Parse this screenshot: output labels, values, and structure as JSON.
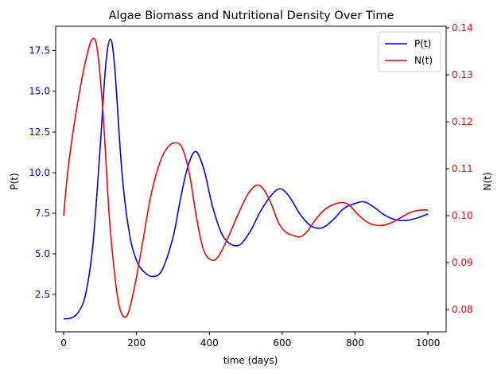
{
  "chart_data": {
    "type": "line",
    "title": "Algae Biomass and Nutritional Density Over Time",
    "xlabel": "time (days)",
    "ylabel_left": "P(t)",
    "ylabel_right": "N(t)",
    "xlim": [
      -22,
      1050
    ],
    "ylim_left": [
      0.2,
      19.0
    ],
    "ylim_right": [
      0.0753,
      0.1403
    ],
    "x_ticks": [
      0,
      200,
      400,
      600,
      800,
      1000
    ],
    "x_tick_labels": [
      "0",
      "200",
      "400",
      "600",
      "800",
      "1000"
    ],
    "y_left_ticks": [
      2.5,
      5.0,
      7.5,
      10.0,
      12.5,
      15.0,
      17.5
    ],
    "y_left_tick_labels": [
      "2.5",
      "5.0",
      "7.5",
      "10.0",
      "12.5",
      "15.0",
      "17.5"
    ],
    "y_right_ticks": [
      0.08,
      0.09,
      0.1,
      0.11,
      0.12,
      0.13,
      0.14
    ],
    "y_right_tick_labels": [
      "0.08",
      "0.09",
      "0.10",
      "0.11",
      "0.12",
      "0.13",
      "0.14"
    ],
    "grid": false,
    "legend_position": "top-right",
    "left_axis_color": "#0000ff",
    "right_axis_color": "#ff0000",
    "series": [
      {
        "name": "P(t)",
        "axis": "left",
        "color": "#0000ff",
        "points": [
          [
            0,
            1.0
          ],
          [
            20,
            1.05
          ],
          [
            40,
            1.4
          ],
          [
            60,
            2.5
          ],
          [
            80,
            5.5
          ],
          [
            100,
            11.5
          ],
          [
            115,
            16.5
          ],
          [
            128,
            18.2
          ],
          [
            140,
            16.5
          ],
          [
            160,
            10.0
          ],
          [
            180,
            6.3
          ],
          [
            200,
            4.6
          ],
          [
            220,
            3.9
          ],
          [
            245,
            3.6
          ],
          [
            270,
            4.0
          ],
          [
            300,
            6.0
          ],
          [
            320,
            8.3
          ],
          [
            340,
            10.3
          ],
          [
            362,
            11.3
          ],
          [
            385,
            10.2
          ],
          [
            410,
            7.8
          ],
          [
            440,
            6.0
          ],
          [
            478,
            5.5
          ],
          [
            510,
            6.3
          ],
          [
            540,
            7.6
          ],
          [
            570,
            8.6
          ],
          [
            595,
            9.0
          ],
          [
            620,
            8.5
          ],
          [
            650,
            7.4
          ],
          [
            680,
            6.7
          ],
          [
            710,
            6.6
          ],
          [
            740,
            7.1
          ],
          [
            770,
            7.8
          ],
          [
            800,
            8.1
          ],
          [
            825,
            8.2
          ],
          [
            850,
            7.9
          ],
          [
            880,
            7.4
          ],
          [
            910,
            7.1
          ],
          [
            940,
            7.05
          ],
          [
            970,
            7.2
          ],
          [
            1000,
            7.45
          ]
        ]
      },
      {
        "name": "N(t)",
        "axis": "right",
        "color": "#ff0000",
        "points": [
          [
            0,
            0.1
          ],
          [
            10,
            0.1085
          ],
          [
            25,
            0.1175
          ],
          [
            45,
            0.127
          ],
          [
            62,
            0.1335
          ],
          [
            78,
            0.1375
          ],
          [
            92,
            0.1355
          ],
          [
            108,
            0.122
          ],
          [
            125,
            0.1
          ],
          [
            140,
            0.0875
          ],
          [
            152,
            0.081
          ],
          [
            165,
            0.0785
          ],
          [
            178,
            0.0795
          ],
          [
            195,
            0.085
          ],
          [
            215,
            0.0935
          ],
          [
            240,
            0.1045
          ],
          [
            265,
            0.1115
          ],
          [
            285,
            0.1145
          ],
          [
            305,
            0.1155
          ],
          [
            325,
            0.1145
          ],
          [
            345,
            0.109
          ],
          [
            365,
            0.0995
          ],
          [
            385,
            0.0925
          ],
          [
            410,
            0.0905
          ],
          [
            430,
            0.092
          ],
          [
            455,
            0.096
          ],
          [
            480,
            0.1005
          ],
          [
            505,
            0.1045
          ],
          [
            530,
            0.1065
          ],
          [
            550,
            0.1055
          ],
          [
            570,
            0.1025
          ],
          [
            590,
            0.0985
          ],
          [
            610,
            0.0965
          ],
          [
            630,
            0.0958
          ],
          [
            650,
            0.0955
          ],
          [
            670,
            0.0968
          ],
          [
            695,
            0.0995
          ],
          [
            720,
            0.1015
          ],
          [
            745,
            0.1025
          ],
          [
            768,
            0.1028
          ],
          [
            785,
            0.1022
          ],
          [
            805,
            0.1005
          ],
          [
            830,
            0.0988
          ],
          [
            855,
            0.098
          ],
          [
            880,
            0.098
          ],
          [
            905,
            0.0987
          ],
          [
            930,
            0.0998
          ],
          [
            955,
            0.1008
          ],
          [
            980,
            0.1012
          ],
          [
            1000,
            0.1012
          ]
        ]
      }
    ]
  }
}
